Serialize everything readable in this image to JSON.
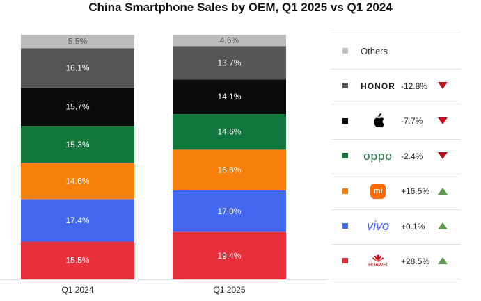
{
  "chart_data": {
    "type": "bar",
    "stacked": true,
    "title": "China Smartphone Sales by OEM, Q1 2025 vs Q1 2024",
    "categories": [
      "Q1 2024",
      "Q1 2025"
    ],
    "ylim": [
      0,
      100
    ],
    "series": [
      {
        "name": "HUAWEI",
        "color": "#e8303d",
        "values": [
          15.5,
          19.4
        ],
        "labels": [
          "15.5%",
          "19.4%"
        ]
      },
      {
        "name": "vivo",
        "color": "#4268f0",
        "values": [
          17.4,
          17.0
        ],
        "labels": [
          "17.4%",
          "17.0%"
        ]
      },
      {
        "name": "mi",
        "color": "#f77f0c",
        "values": [
          14.6,
          16.6
        ],
        "labels": [
          "14.6%",
          "16.6%"
        ]
      },
      {
        "name": "oppo",
        "color": "#12773c",
        "values": [
          15.3,
          14.6
        ],
        "labels": [
          "15.3%",
          "14.6%"
        ]
      },
      {
        "name": "apple",
        "color": "#0a0a0a",
        "values": [
          15.7,
          14.1
        ],
        "labels": [
          "15.7%",
          "14.1%"
        ]
      },
      {
        "name": "HONOR",
        "color": "#555555",
        "values": [
          16.1,
          13.7
        ],
        "labels": [
          "16.1%",
          "13.7%"
        ]
      },
      {
        "name": "Others",
        "color": "#bdbdbd",
        "values": [
          5.5,
          4.6
        ],
        "labels": [
          "5.5%",
          "4.6%"
        ]
      }
    ],
    "legend": {
      "position": "right",
      "items": [
        {
          "key": "others",
          "label": "Others",
          "color": "#bdbdbd",
          "change": "",
          "trend": ""
        },
        {
          "key": "honor",
          "label": "HONOR",
          "color": "#555555",
          "change": "-12.8%",
          "trend": "down",
          "icon": "honor-logo-icon"
        },
        {
          "key": "apple",
          "label": "",
          "color": "#0a0a0a",
          "change": "-7.7%",
          "trend": "down",
          "icon": "apple-logo-icon"
        },
        {
          "key": "oppo",
          "label": "oppo",
          "color": "#12773c",
          "change": "-2.4%",
          "trend": "down",
          "icon": "oppo-logo-icon"
        },
        {
          "key": "mi",
          "label": "mi",
          "color": "#f77f0c",
          "change": "+16.5%",
          "trend": "up",
          "icon": "mi-logo-icon"
        },
        {
          "key": "vivo",
          "label": "vivo",
          "color": "#4268f0",
          "change": "+0.1%",
          "trend": "up",
          "icon": "vivo-logo-icon"
        },
        {
          "key": "huawei",
          "label": "HUAWEI",
          "color": "#e8303d",
          "change": "+28.5%",
          "trend": "up",
          "icon": "huawei-logo-icon"
        }
      ]
    },
    "trend_colors": {
      "down": "#c0141c",
      "up": "#5a9a4a"
    }
  }
}
